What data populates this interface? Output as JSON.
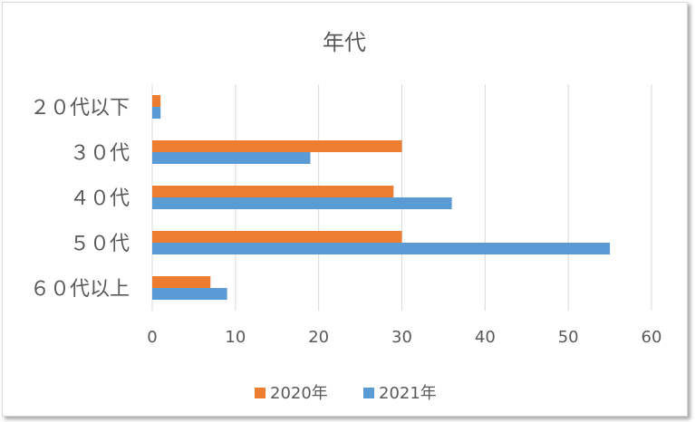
{
  "chart_data": {
    "type": "bar",
    "orientation": "horizontal",
    "title": "年代",
    "categories": [
      "２０代以下",
      "３０代",
      "４０代",
      "５０代",
      "６０代以上"
    ],
    "series": [
      {
        "name": "2020年",
        "color": "#ED7D31",
        "values": [
          1,
          30,
          29,
          30,
          7
        ]
      },
      {
        "name": "2021年",
        "color": "#5B9BD5",
        "values": [
          1,
          19,
          36,
          55,
          9
        ]
      }
    ],
    "xlim": [
      0,
      60
    ],
    "xticks": [
      0,
      10,
      20,
      30,
      40,
      50,
      60
    ],
    "grid": true,
    "legend_position": "bottom"
  }
}
